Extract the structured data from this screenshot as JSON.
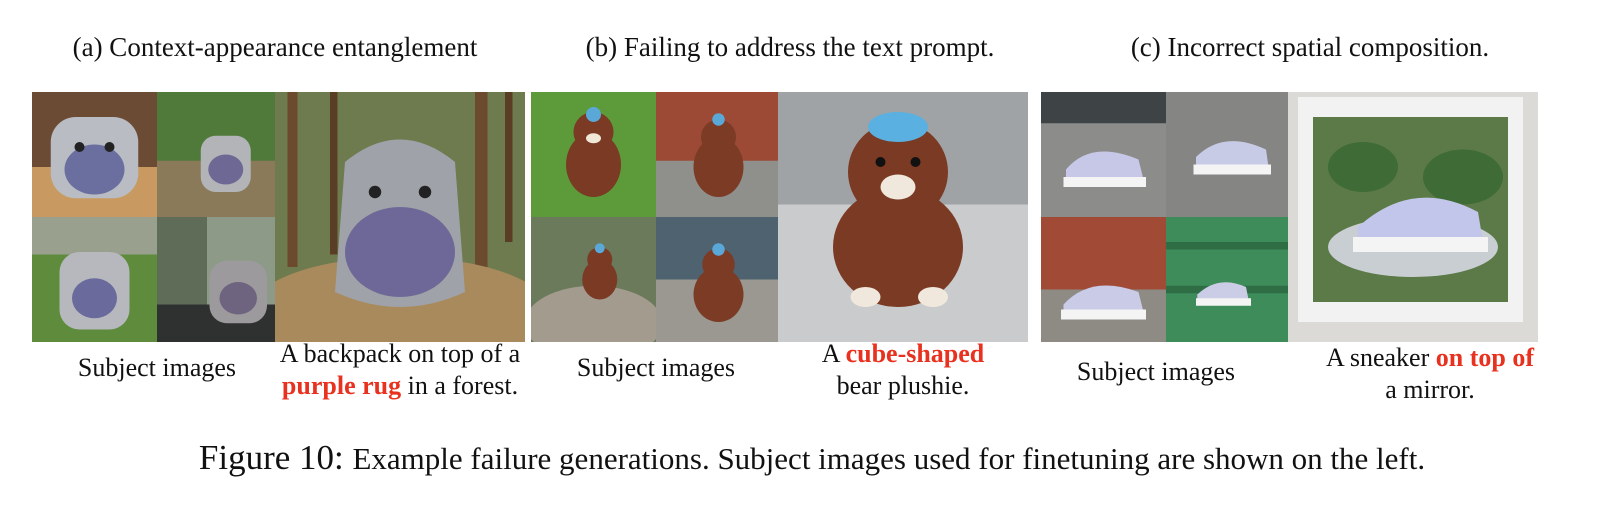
{
  "panels": [
    {
      "title": "(a) Context-appearance entanglement",
      "subject_label": "Subject images",
      "prompt": {
        "before": "A backpack on top of a",
        "highlight": "purple rug",
        "after": "in a forest."
      }
    },
    {
      "title": "(b) Failing to address the text prompt.",
      "subject_label": "Subject images",
      "prompt": {
        "before": "A",
        "highlight": "cube-shaped",
        "after": "bear plushie."
      }
    },
    {
      "title": "(c) Incorrect spatial composition.",
      "subject_label": "Subject images",
      "prompt": {
        "before": "A sneaker",
        "highlight": "on top of",
        "after": "a mirror."
      }
    }
  ],
  "figure": {
    "label": "Figure 10:",
    "text": "Example failure generations. Subject images used for finetuning are shown on the left."
  },
  "colors": {
    "highlight": "#e8321f"
  }
}
